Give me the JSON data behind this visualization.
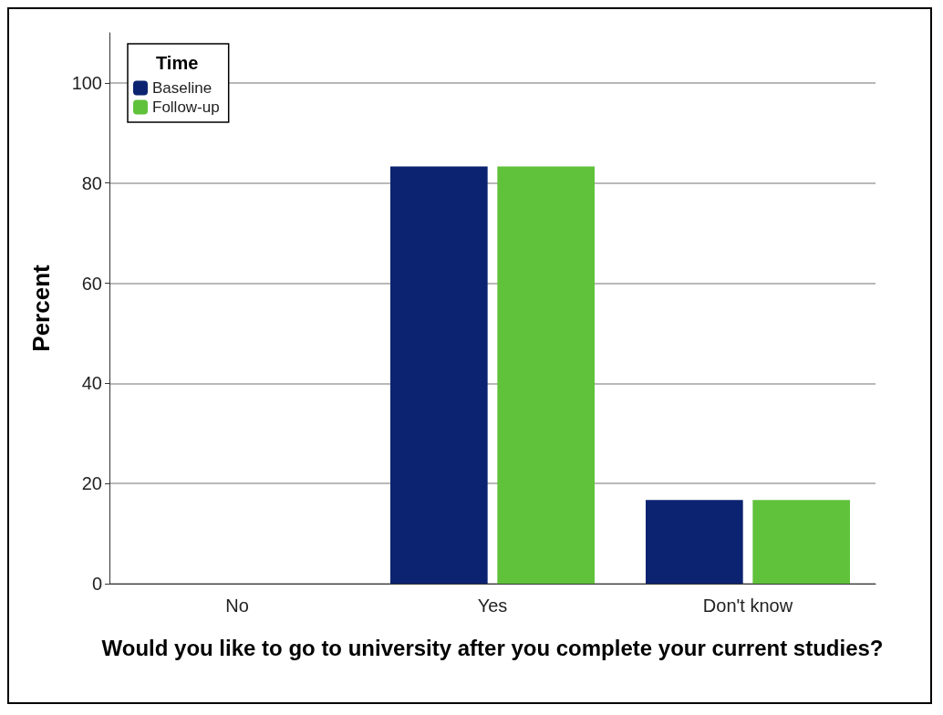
{
  "chart_data": {
    "type": "bar",
    "categories": [
      "No",
      "Yes",
      "Don't know"
    ],
    "series": [
      {
        "name": "Baseline",
        "color": "#0b2370",
        "values": [
          0,
          83.3,
          16.7
        ]
      },
      {
        "name": "Follow-up",
        "color": "#60c23b",
        "values": [
          0,
          83.3,
          16.7
        ]
      }
    ],
    "xlabel": "Would you like to go to university after you complete your current studies?",
    "ylabel": "Percent",
    "legend_title": "Time",
    "legend": "top left",
    "ylim": [
      0,
      110
    ],
    "yticks": [
      0,
      20,
      40,
      60,
      80,
      100
    ],
    "grid": "y"
  }
}
